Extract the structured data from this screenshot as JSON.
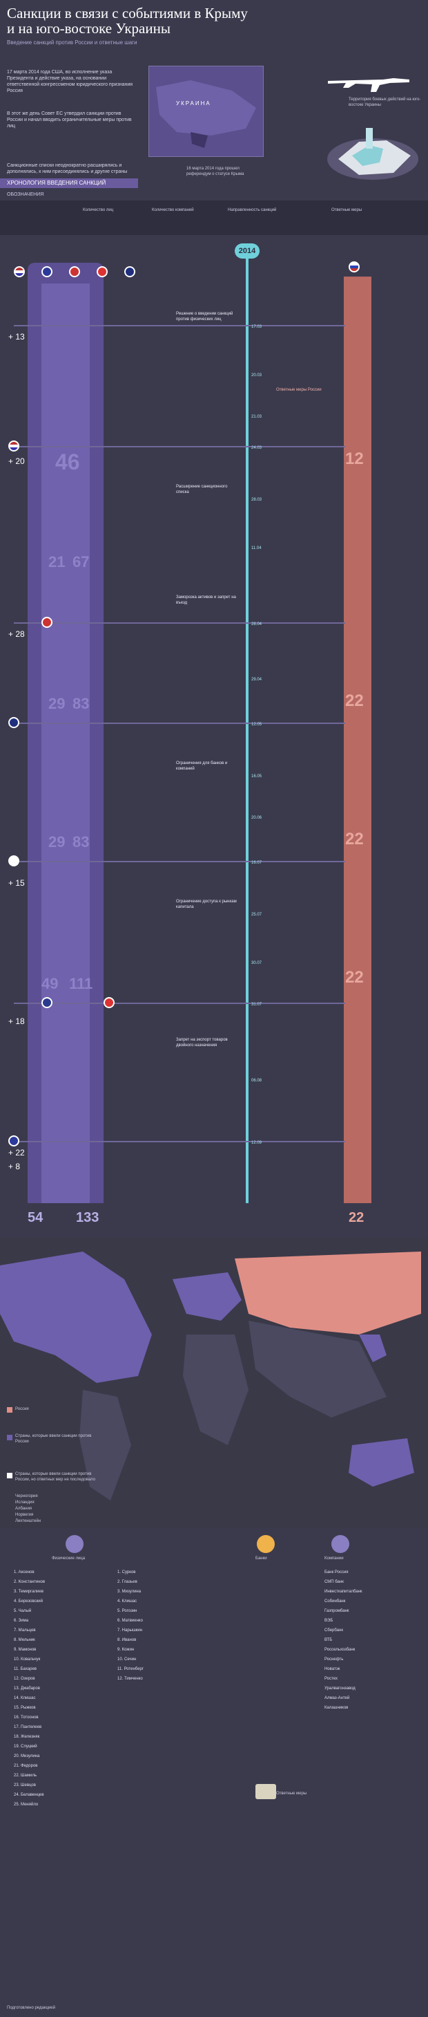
{
  "title": "Санкции в связи с событиями в Крыму и на юго-востоке Украины",
  "subtitle": "Введение санкций против России и ответные шаги",
  "intro": [
    "17 марта 2014 года США, во исполнение указа Президента и действие указа, на основании ответственной конгрессменом юридического признания Россия",
    "В этот же день Совет ЕС утвердил санкции против России и начал вводить ограничительные меры против лиц",
    "Санкционные списки неоднократно расширялись и дополнялись, к ним присоединялись и другие страны"
  ],
  "map_labels": {
    "ukraine": "УКРАИНА",
    "territory": "Территория боевых действий на юго-востоке Украины",
    "crimea_note": "16 марта 2014 года прошел референдум о статусе Крыма"
  },
  "chronology_header": "ХРОНОЛОГИЯ ВВЕДЕНИЯ САНКЦИЙ",
  "legend_header": "ОБОЗНАЧЕНИЯ",
  "legend_items": [
    "Количество лиц",
    "Количество компаний",
    "Направленность санкций",
    "Ответные меры"
  ],
  "year": "2014",
  "totals": {
    "left_a": "54",
    "left_b": "133",
    "right": "22"
  },
  "numbers_mid": [
    "46",
    "21",
    "67",
    "29",
    "83",
    "29",
    "83",
    "49",
    "111"
  ],
  "numbers_right": [
    "12",
    "22",
    "22",
    "22",
    "22"
  ],
  "plus_labels": [
    "+ 13",
    "+ 20",
    "+ 28",
    "+ 15",
    "+ 18",
    "+ 22",
    "+ 8"
  ],
  "dates": [
    "17.03",
    "20.03",
    "21.03",
    "24.03",
    "28.03",
    "11.04",
    "28.04",
    "29.04",
    "12.05",
    "16.05",
    "20.06",
    "16.07",
    "25.07",
    "30.07",
    "31.07",
    "06.08",
    "12.09"
  ],
  "events": [
    "Решение о введении санкций против физических лиц",
    "Расширение санкционного списка",
    "Заморозка активов и запрет на въезд",
    "Ограничения для банков и компаний",
    "Ограничение доступа к рынкам капитала",
    "Запрет на экспорт товаров двойного назначения",
    "Ответные меры России"
  ],
  "world_map": {
    "legend_russia": "Россия",
    "legend_sanctions": "Страны, которые ввели санкции против России",
    "legend_joined": "Страны, которые ввели санкции против России, но ответных мер не последовало",
    "names": [
      "Черногория",
      "Исландия",
      "Албания",
      "Норвегия",
      "Лихтенштейн"
    ]
  },
  "bottom_sections": [
    "Физические лица",
    "Банки",
    "Компании",
    "Ответные меры"
  ],
  "list_left": [
    "1. Аксенов",
    "2. Константинов",
    "3. Темиргалиев",
    "4. Березовский",
    "5. Чалый",
    "6. Зима",
    "7. Мальцев",
    "8. Мельник",
    "9. Мамонов",
    "10. Ковальчук",
    "11. Бахарев",
    "12. Озеров",
    "13. Джабаров",
    "14. Клишас",
    "15. Рыжков",
    "16. Тотоонов",
    "17. Пантелеев",
    "18. Железняк",
    "19. Слуцкий",
    "20. Мизулина",
    "21. Федоров",
    "22. Шамиль",
    "23. Шевцов",
    "24. Белавенцев",
    "25. Меняйло"
  ],
  "list_mid": [
    "1. Сурков",
    "2. Глазьев",
    "3. Мизулина",
    "4. Клишас",
    "5. Рогозин",
    "6. Матвиенко",
    "7. Нарышкин",
    "8. Иванов",
    "9. Кожин",
    "10. Сечин",
    "11. Ротенберг",
    "12. Тимченко"
  ],
  "list_right": [
    "Банк Россия",
    "СМП банк",
    "Инвесткапиталбанк",
    "Собинбанк",
    "Газпромбанк",
    "ВЭБ",
    "Сбербанк",
    "ВТБ",
    "Россельхозбанк",
    "Роснефть",
    "Новатэк",
    "Ростех",
    "Уралвагонзавод",
    "Алмаз-Антей",
    "Калашников"
  ],
  "footer": "Подготовлено редакцией"
}
